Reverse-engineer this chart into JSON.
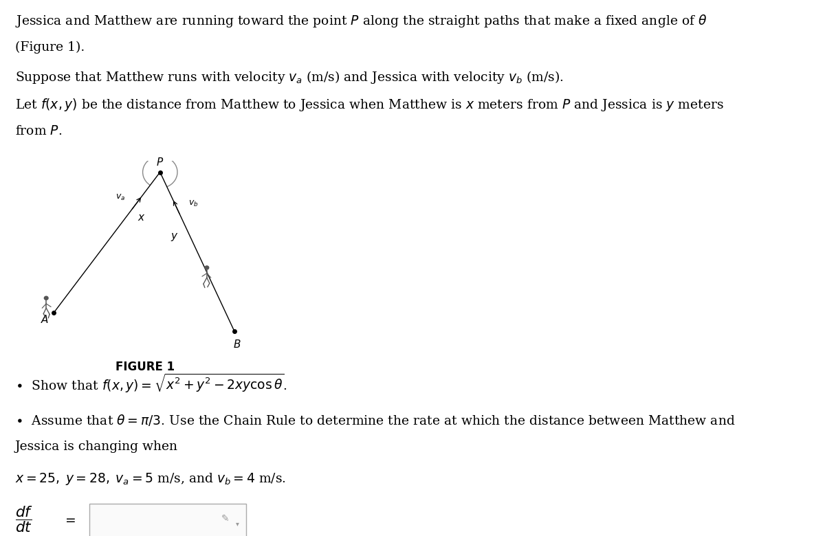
{
  "bg_color": "#ffffff",
  "text_color": "#000000",
  "fig_width": 12.0,
  "fig_height": 7.8,
  "line1": "Jessica and Matthew are running toward the point $P$ along the straight paths that make a fixed angle of $\\theta$",
  "line2": "(Figure 1).",
  "line3": "Suppose that Matthew runs with velocity $v_a$ (m/s) and Jessica with velocity $v_b$ (m/s).",
  "line4": "Let $f(x, y)$ be the distance from Matthew to Jessica when Matthew is $x$ meters from $P$ and Jessica is $y$ meters",
  "line5": "from $P$.",
  "bullet1": "$\\bullet$  Show that $f(x,y) = \\sqrt{x^2 + y^2 - 2xy\\cos\\theta}$.",
  "bullet2_part1": "$\\bullet$  Assume that $\\theta = \\pi/3$. Use the Chain Rule to determine the rate at which the distance between Matthew and",
  "bullet2_part2": "Jessica is changing when",
  "conditions": "$x = 25,\\; y = 28,\\; v_a = 5$ m/s, and $v_b = 4$ m/s.",
  "figure_label": "FIGURE 1",
  "P_label": "$P$",
  "A_label": "$A$",
  "B_label": "$B$",
  "x_label": "$x$",
  "y_label": "$y$",
  "va_label": "$v_a$",
  "vb_label": "$v_b$",
  "font_size_main": 13.5,
  "font_size_figure": 11
}
